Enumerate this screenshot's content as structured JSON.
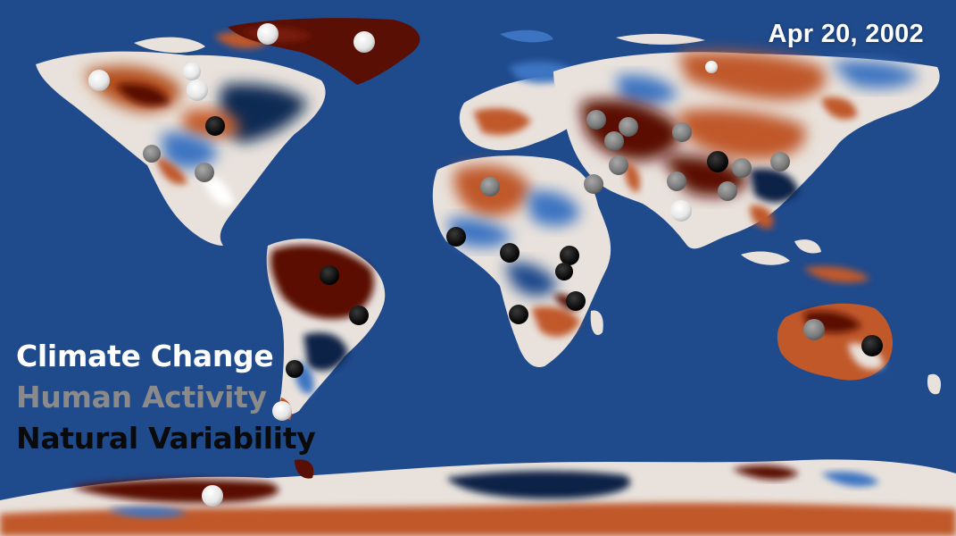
{
  "date": "Apr  20, 2002",
  "legend": [
    {
      "label": "Climate Change",
      "color": "#ffffff",
      "marker": "white-circle"
    },
    {
      "label": "Human Activity",
      "color": "#8a8a8a",
      "marker": "gray-circle"
    },
    {
      "label": "Natural Variability",
      "color": "#0a0a0a",
      "marker": "black-circle"
    }
  ],
  "colors": {
    "ocean": "#1f4a8c",
    "drying_strong": "#5a0f05",
    "drying": "#c0582a",
    "neutral": "#e8e3de",
    "wetting": "#3c74c2",
    "wetting_strong": "#0b2346"
  }
}
